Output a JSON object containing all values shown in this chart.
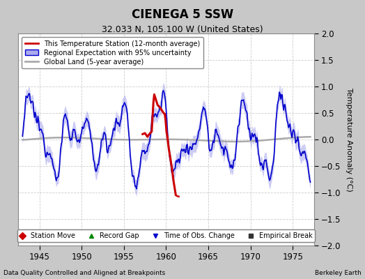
{
  "title": "CIENEGA 5 SSW",
  "subtitle": "32.033 N, 105.100 W (United States)",
  "ylabel": "Temperature Anomaly (°C)",
  "footer_left": "Data Quality Controlled and Aligned at Breakpoints",
  "footer_right": "Berkeley Earth",
  "xlim": [
    1942.5,
    1977.5
  ],
  "ylim": [
    -2,
    2
  ],
  "yticks": [
    -2,
    -1.5,
    -1,
    -0.5,
    0,
    0.5,
    1,
    1.5,
    2
  ],
  "xticks": [
    1945,
    1950,
    1955,
    1960,
    1965,
    1970,
    1975
  ],
  "bg_color": "#c8c8c8",
  "plot_bg_color": "#ffffff",
  "regional_color": "#aaaaee",
  "regional_line_color": "#0000cc",
  "global_color": "#aaaaaa",
  "station_color": "#cc0000",
  "legend1": [
    {
      "label": "This Temperature Station (12-month average)",
      "color": "#cc0000",
      "lw": 2
    },
    {
      "label": "Regional Expectation with 95% uncertainty",
      "color": "#0000cc",
      "band": "#aaaaee"
    },
    {
      "label": "Global Land (5-year average)",
      "color": "#aaaaaa",
      "lw": 2
    }
  ],
  "legend2": [
    {
      "label": "Station Move",
      "marker": "D",
      "color": "#cc0000"
    },
    {
      "label": "Record Gap",
      "marker": "^",
      "color": "#008800"
    },
    {
      "label": "Time of Obs. Change",
      "marker": "v",
      "color": "#0000cc"
    },
    {
      "label": "Empirical Break",
      "marker": "s",
      "color": "#333333"
    }
  ]
}
